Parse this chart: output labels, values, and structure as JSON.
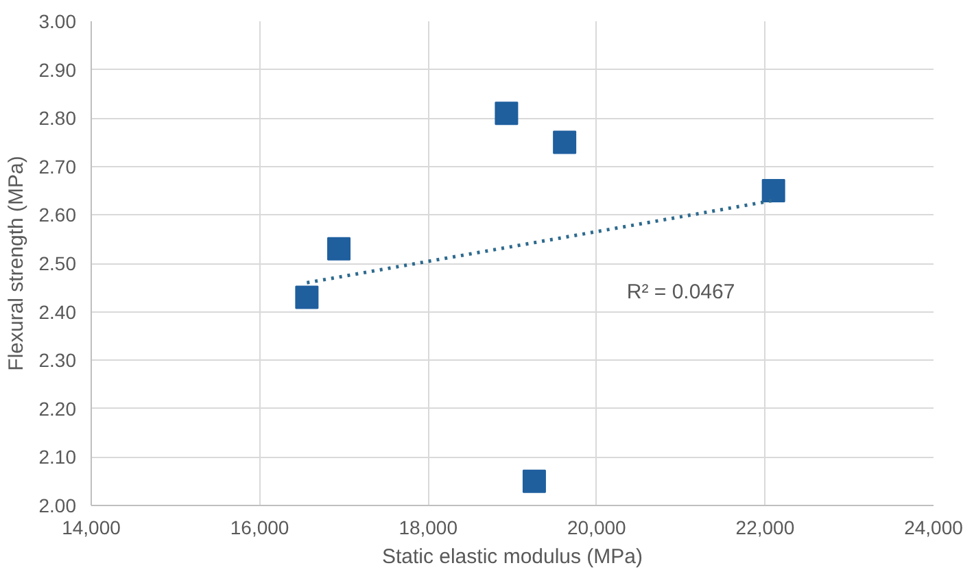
{
  "chart_data": {
    "type": "scatter",
    "xlabel": "Static elastic modulus (MPa)",
    "ylabel": "Flexural strength (MPa)",
    "xlim": [
      14000,
      24000
    ],
    "xticks": [
      {
        "value": 14000,
        "label": "14,000"
      },
      {
        "value": 16000,
        "label": "16,000"
      },
      {
        "value": 18000,
        "label": "18,000"
      },
      {
        "value": 20000,
        "label": "20,000"
      },
      {
        "value": 22000,
        "label": "22,000"
      },
      {
        "value": 24000,
        "label": "24,000"
      }
    ],
    "ylim": [
      2.0,
      3.0
    ],
    "yticks": [
      {
        "value": 2.0,
        "label": "2.00"
      },
      {
        "value": 2.1,
        "label": "2.10"
      },
      {
        "value": 2.2,
        "label": "2.20"
      },
      {
        "value": 2.3,
        "label": "2.30"
      },
      {
        "value": 2.4,
        "label": "2.40"
      },
      {
        "value": 2.5,
        "label": "2.50"
      },
      {
        "value": 2.6,
        "label": "2.60"
      },
      {
        "value": 2.7,
        "label": "2.70"
      },
      {
        "value": 2.8,
        "label": "2.80"
      },
      {
        "value": 2.9,
        "label": "2.90"
      },
      {
        "value": 3.0,
        "label": "3.00"
      }
    ],
    "grid": true,
    "series": [
      {
        "color": "#1f5f9e",
        "marker": "square",
        "x": [
          16560,
          16940,
          18930,
          19620,
          19260,
          22100
        ],
        "values": [
          2.43,
          2.53,
          2.81,
          2.75,
          2.05,
          2.65
        ]
      },
      {
        "type": "line",
        "color": "#2e6a8e",
        "line_style": "dotted",
        "x": [
          16560,
          22100
        ],
        "values": [
          2.46,
          2.63
        ]
      }
    ],
    "annotations": [
      "R² = 0.0467"
    ]
  }
}
